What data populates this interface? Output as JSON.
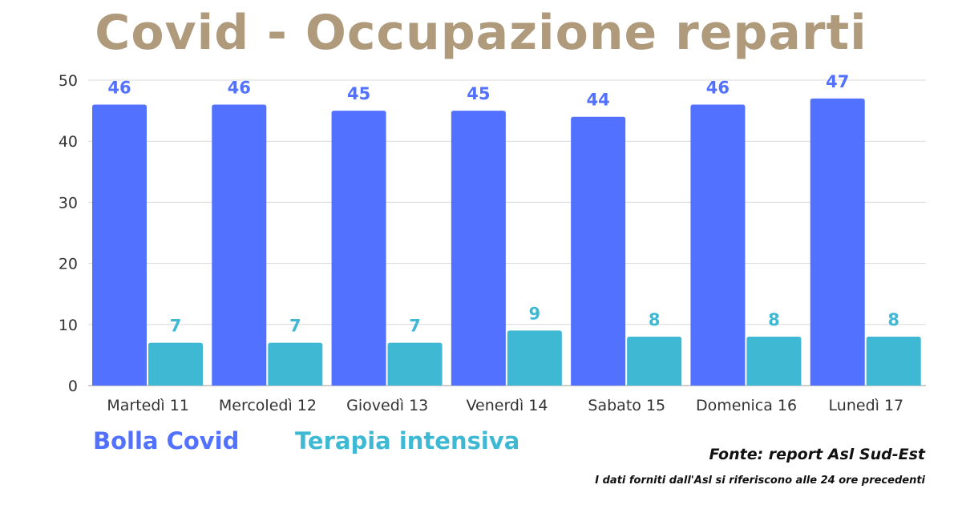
{
  "colors": {
    "title": "#b09a7c",
    "series_1": "#5271ff",
    "series_2": "#3fb8d4",
    "grid": "#d9d9d9",
    "axis_text": "#333333"
  },
  "legend": {
    "series_1_label": "Bolla Covid",
    "series_2_label": "Terapia intensiva"
  },
  "footer": {
    "source": "Fonte: report Asl Sud-Est",
    "note": "I dati forniti dall'Asl si riferiscono alle 24 ore precedenti"
  },
  "chart_data": {
    "type": "bar",
    "title": "Covid - Occupazione reparti",
    "categories": [
      "Martedì 11",
      "Mercoledì 12",
      "Giovedì 13",
      "Venerdì 14",
      "Sabato 15",
      "Domenica 16",
      "Lunedì 17"
    ],
    "series": [
      {
        "name": "Bolla Covid",
        "values": [
          46,
          46,
          45,
          45,
          44,
          46,
          47
        ]
      },
      {
        "name": "Terapia intensiva",
        "values": [
          7,
          7,
          7,
          9,
          8,
          8,
          8
        ]
      }
    ],
    "ylim": [
      0,
      50
    ],
    "yticks": [
      0,
      10,
      20,
      30,
      40,
      50
    ],
    "grid": true,
    "legend_position": "bottom-left",
    "data_labels": true
  }
}
